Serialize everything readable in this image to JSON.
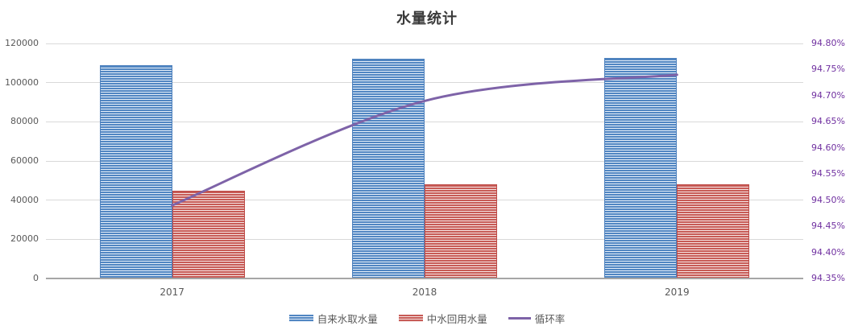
{
  "title": "水量统计",
  "colors": {
    "bar1_dark": "#5186C2",
    "bar1_light": "#E6EFF9",
    "bar1_border": "#4E81BD",
    "bar2_dark": "#C75B56",
    "bar2_light": "#F6E5E4",
    "bar2_border": "#BE4B47",
    "line": "#7E63A8",
    "grid": "#D9D9D9",
    "axis_line": "#A6A6A6",
    "axis_text": "#595959",
    "right_axis_text": "#7030A0",
    "title_text": "#3b3b3b"
  },
  "chart_data": {
    "type": "bar",
    "subtype": "combo-bar-line",
    "title": "水量统计",
    "categories": [
      "2017",
      "2018",
      "2019"
    ],
    "series": [
      {
        "name": "自来水取水量",
        "kind": "bar",
        "axis": "left",
        "values": [
          109000,
          112000,
          112700
        ]
      },
      {
        "name": "中水回用水量",
        "kind": "bar",
        "axis": "left",
        "values": [
          45000,
          47900,
          48100
        ]
      },
      {
        "name": "循环率",
        "kind": "line",
        "axis": "right",
        "unit": "%",
        "values": [
          94.49,
          94.69,
          94.74
        ]
      }
    ],
    "left_axis": {
      "min": 0,
      "max": 120000,
      "step": 20000,
      "tick_labels": [
        "0",
        "20000",
        "40000",
        "60000",
        "80000",
        "100000",
        "120000"
      ]
    },
    "right_axis": {
      "min": 94.35,
      "max": 94.8,
      "step": 0.05,
      "tick_labels": [
        "94.35%",
        "94.40%",
        "94.45%",
        "94.50%",
        "94.55%",
        "94.60%",
        "94.65%",
        "94.70%",
        "94.75%",
        "94.80%"
      ]
    },
    "grid": true,
    "legend_position": "bottom"
  }
}
